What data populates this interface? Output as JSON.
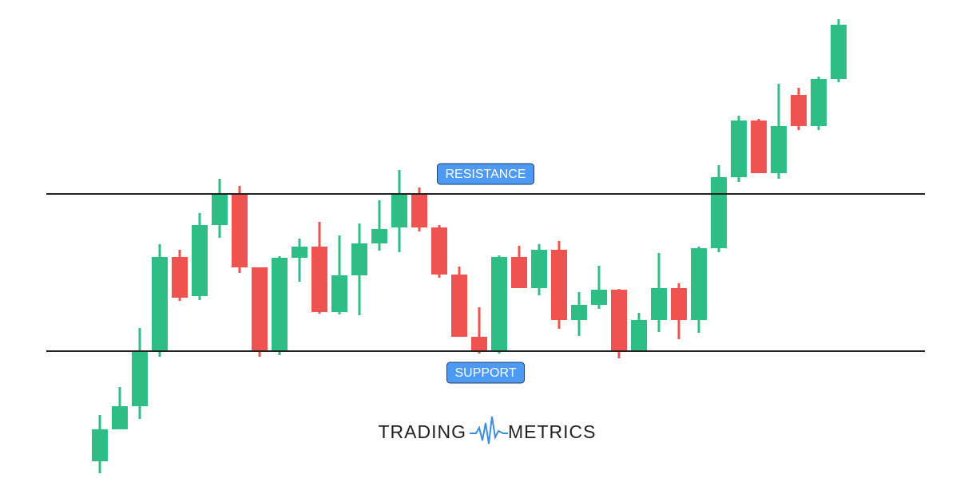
{
  "chart_data": {
    "type": "candlestick",
    "ylim": [
      0,
      619
    ],
    "up_color": "#2ebd85",
    "down_color": "#ef5350",
    "open": [
      41,
      81,
      110,
      178,
      297,
      248,
      337,
      375,
      284,
      178,
      296,
      310,
      228,
      274,
      314,
      334,
      376,
      334,
      275,
      197,
      178,
      297,
      258,
      306,
      218,
      237,
      256,
      178,
      218,
      258,
      218,
      308,
      397,
      468,
      402,
      500,
      461,
      520
    ],
    "high": [
      99,
      134,
      208,
      313,
      306,
      352,
      395,
      386,
      284,
      298,
      320,
      341,
      324,
      339,
      368,
      406,
      384,
      337,
      285,
      234,
      299,
      311,
      313,
      317,
      253,
      286,
      257,
      227,
      302,
      264,
      310,
      412,
      474,
      470,
      514,
      509,
      523,
      595
    ],
    "low": [
      26,
      81,
      94,
      172,
      242,
      243,
      321,
      277,
      172,
      174,
      266,
      226,
      225,
      224,
      305,
      303,
      329,
      271,
      197,
      176,
      176,
      258,
      249,
      207,
      198,
      232,
      170,
      178,
      203,
      194,
      202,
      303,
      391,
      402,
      395,
      456,
      456,
      516
    ],
    "close": [
      81,
      110,
      178,
      297,
      246,
      337,
      375,
      284,
      178,
      296,
      310,
      228,
      274,
      314,
      332,
      376,
      334,
      275,
      197,
      178,
      297,
      258,
      306,
      218,
      237,
      256,
      178,
      218,
      258,
      218,
      308,
      397,
      468,
      402,
      461,
      461,
      520,
      588
    ],
    "levels": [
      {
        "label": "RESISTANCE",
        "value": 376
      },
      {
        "label": "SUPPORT",
        "value": 179
      }
    ],
    "watermark": {
      "left": "TRADING",
      "right": "METRICS"
    }
  }
}
